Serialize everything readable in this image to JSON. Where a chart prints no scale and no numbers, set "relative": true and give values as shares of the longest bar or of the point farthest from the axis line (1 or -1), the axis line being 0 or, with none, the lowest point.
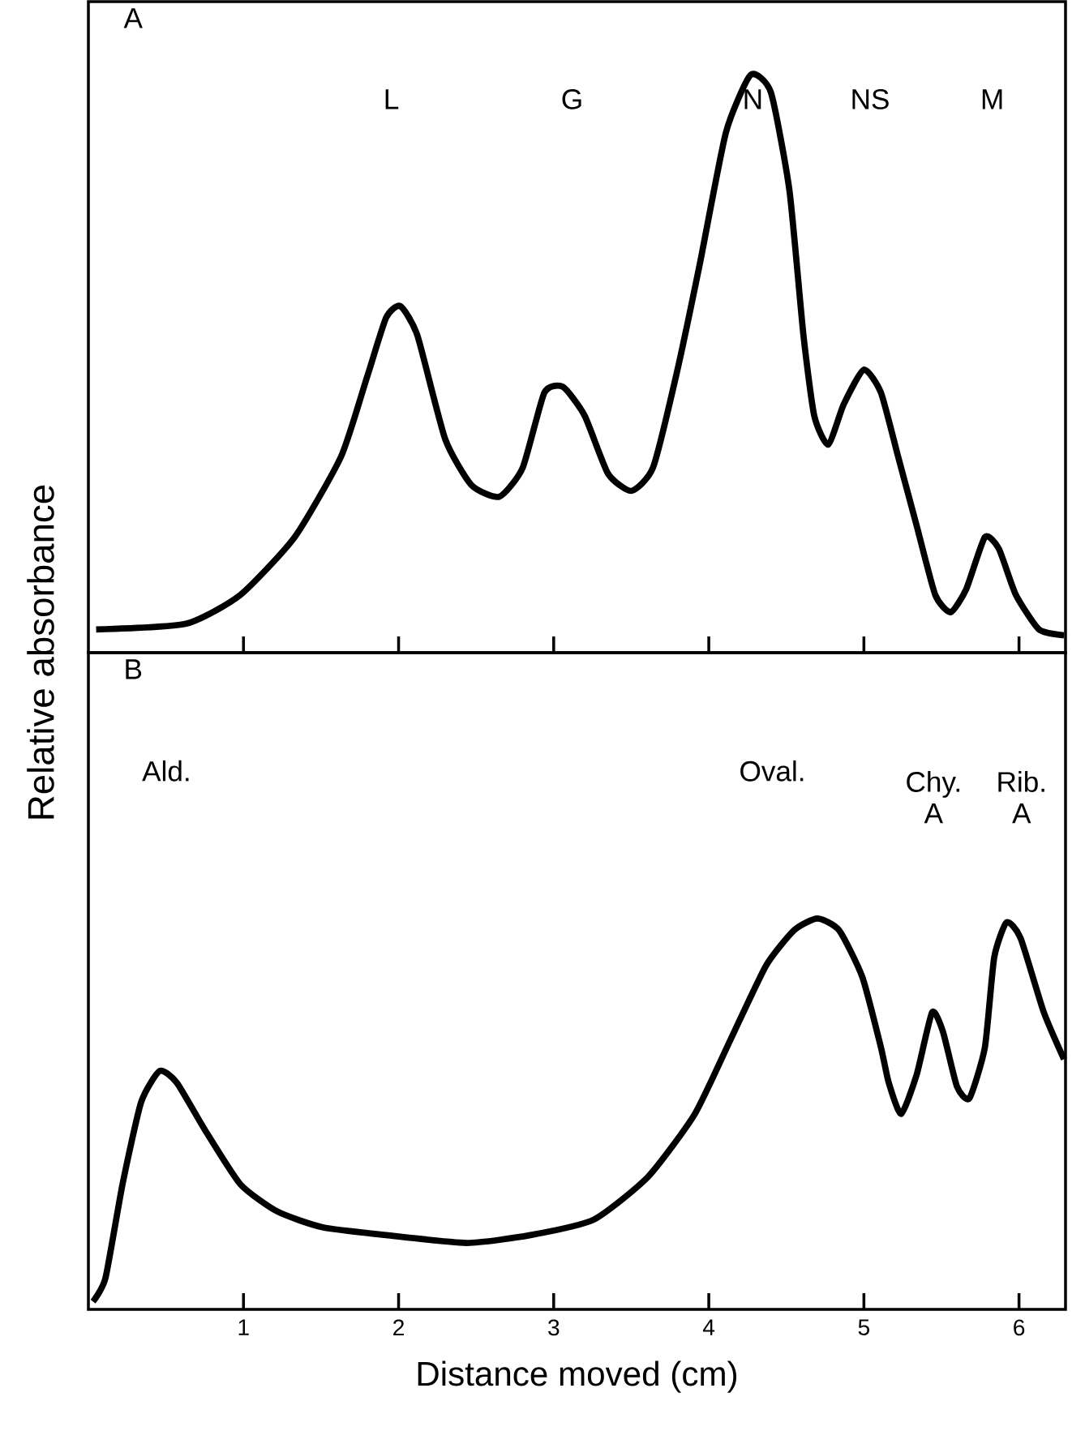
{
  "chart_data": [
    {
      "type": "line",
      "relative": true,
      "ylabel": "Relative absorbance",
      "xlim": [
        0,
        6.3
      ],
      "xticks": [
        {
          "value": 1,
          "label": null
        },
        {
          "value": 2,
          "label": null
        },
        {
          "value": 3,
          "label": null
        },
        {
          "value": 4,
          "label": null
        },
        {
          "value": 5,
          "label": null
        },
        {
          "value": 6,
          "label": null
        }
      ],
      "tick_labels": false,
      "x": [
        0.05,
        0.63,
        0.98,
        1.33,
        1.63,
        1.8,
        1.92,
        2.01,
        2.12,
        2.3,
        2.47,
        2.65,
        2.8,
        2.94,
        3.06,
        3.2,
        3.35,
        3.5,
        3.64,
        3.79,
        3.94,
        4.11,
        4.27,
        4.4,
        4.52,
        4.61,
        4.68,
        4.77,
        4.87,
        5.0,
        5.11,
        5.22,
        5.34,
        5.46,
        5.56,
        5.66,
        5.78,
        5.87,
        5.98,
        6.13,
        6.29
      ],
      "series": [
        {
          "color": "#000000",
          "values": [
            0.04,
            0.05,
            0.1,
            0.2,
            0.34,
            0.48,
            0.58,
            0.6,
            0.55,
            0.37,
            0.29,
            0.27,
            0.32,
            0.45,
            0.46,
            0.41,
            0.31,
            0.28,
            0.32,
            0.48,
            0.67,
            0.9,
            1.0,
            0.97,
            0.8,
            0.55,
            0.41,
            0.36,
            0.43,
            0.49,
            0.45,
            0.34,
            0.22,
            0.1,
            0.07,
            0.11,
            0.2,
            0.18,
            0.1,
            0.04,
            0.03
          ]
        }
      ],
      "annotations": [
        "A",
        "L",
        "G",
        "N",
        "NS",
        "M"
      ]
    },
    {
      "type": "line",
      "relative": true,
      "xlabel": "Distance moved (cm)",
      "xlim": [
        0,
        6.3
      ],
      "xticks": [
        1,
        2,
        3,
        4,
        5,
        6
      ],
      "tick_labels": "x",
      "x": [
        0.03,
        0.11,
        0.22,
        0.34,
        0.46,
        0.57,
        0.75,
        0.98,
        1.22,
        1.51,
        1.92,
        2.44,
        2.85,
        3.26,
        3.61,
        3.91,
        4.14,
        4.37,
        4.55,
        4.7,
        4.84,
        4.99,
        5.11,
        5.16,
        5.24,
        5.34,
        5.44,
        5.51,
        5.6,
        5.68,
        5.78,
        5.84,
        5.92,
        6.01,
        6.16,
        6.29
      ],
      "series": [
        {
          "color": "#000000",
          "values": [
            0.02,
            0.08,
            0.32,
            0.53,
            0.61,
            0.58,
            0.46,
            0.32,
            0.25,
            0.21,
            0.19,
            0.17,
            0.19,
            0.23,
            0.34,
            0.5,
            0.69,
            0.88,
            0.97,
            1.0,
            0.97,
            0.85,
            0.67,
            0.58,
            0.5,
            0.6,
            0.76,
            0.71,
            0.57,
            0.54,
            0.67,
            0.9,
            0.99,
            0.95,
            0.76,
            0.64
          ]
        }
      ],
      "annotations": [
        "B",
        "Ald.",
        "Oval.",
        "Chy. A",
        "Rib. A"
      ]
    }
  ]
}
